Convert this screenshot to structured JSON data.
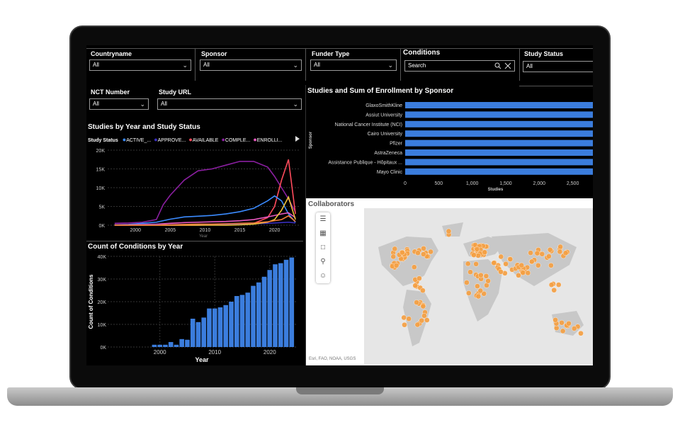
{
  "filters": {
    "countryname": {
      "label": "Countryname",
      "value": "All"
    },
    "sponsor": {
      "label": "Sponsor",
      "value": "All"
    },
    "funder_type": {
      "label": "Funder Type",
      "value": "All"
    },
    "conditions": {
      "label": "Conditions",
      "placeholder": "Search"
    },
    "study_status": {
      "label": "Study Status",
      "value": "All"
    },
    "nct_number": {
      "label": "NCT Number",
      "value": "All"
    },
    "study_url": {
      "label": "Study URL",
      "value": "All"
    }
  },
  "icons": {
    "chevron": "chevron-down-icon",
    "search": "search-icon",
    "clear": "close-icon",
    "play": "play-icon"
  },
  "line_chart": {
    "title": "Studies by Year and Study Status",
    "legend_title": "Study Status",
    "legend": [
      {
        "name": "ACTIVE_...",
        "color": "#3b8bff"
      },
      {
        "name": "APPROVE...",
        "color": "#3a2fc0"
      },
      {
        "name": "AVAILABLE",
        "color": "#ff4b5c"
      },
      {
        "name": "COMPLE...",
        "color": "#8a1fa0"
      },
      {
        "name": "ENROLLI...",
        "color": "#e858c0"
      }
    ],
    "xlabel": "Year"
  },
  "bar_chart": {
    "title": "Studies and Sum of Enrollment by Sponsor",
    "ylabel": "Sponsor",
    "xlabel": "Studies"
  },
  "column_chart": {
    "title": "Count of Conditions by Year",
    "ylabel": "Count of Conditions",
    "xlabel": "Year"
  },
  "map": {
    "title": "Collaborators",
    "attribution": "Esri, FAO, NOAA, USGS",
    "dot_color": "#f5a044"
  },
  "chart_data": [
    {
      "type": "line",
      "title": "Studies by Year and Study Status",
      "xlabel": "Year",
      "x": [
        1997,
        1999,
        2001,
        2003,
        2004,
        2005,
        2007,
        2009,
        2011,
        2013,
        2015,
        2017,
        2019,
        2020,
        2021,
        2022,
        2023
      ],
      "x_ticks": [
        2000,
        2005,
        2010,
        2015,
        2020
      ],
      "y_ticks": [
        "0K",
        "5K",
        "10K",
        "15K",
        "20K"
      ],
      "ylim": [
        0,
        20000
      ],
      "series": [
        {
          "name": "COMPLE...",
          "color": "#8a1fa0",
          "values": [
            500,
            600,
            800,
            1500,
            5500,
            8000,
            12000,
            14500,
            15000,
            16000,
            17000,
            17000,
            15500,
            13000,
            10000,
            7000,
            3500
          ]
        },
        {
          "name": "AVAILABLE",
          "color": "#ff4b5c",
          "values": [
            0,
            0,
            0,
            0,
            0,
            0,
            0,
            0,
            100,
            200,
            300,
            500,
            2000,
            5000,
            12000,
            17500,
            3000
          ]
        },
        {
          "name": "ACTIVE_...",
          "color": "#3b8bff",
          "values": [
            100,
            200,
            500,
            800,
            1200,
            1600,
            2200,
            2400,
            2600,
            3000,
            3600,
            4500,
            6500,
            7800,
            6500,
            3000,
            800
          ]
        },
        {
          "name": "ENROLLI...",
          "color": "#e858c0",
          "values": [
            100,
            100,
            200,
            300,
            400,
            500,
            700,
            800,
            900,
            1000,
            1200,
            1500,
            2200,
            2600,
            3000,
            3300,
            2000
          ]
        },
        {
          "name": "APPROVE...",
          "color": "#3a2fc0",
          "values": [
            0,
            0,
            50,
            100,
            100,
            150,
            200,
            200,
            250,
            300,
            350,
            400,
            500,
            600,
            700,
            800,
            600
          ]
        },
        {
          "name": "",
          "color": "#f0c43c",
          "values": [
            0,
            0,
            0,
            0,
            0,
            0,
            0,
            0,
            0,
            0,
            100,
            300,
            800,
            1500,
            4000,
            7500,
            1500
          ]
        },
        {
          "name": "",
          "color": "#f07a3a",
          "values": [
            0,
            0,
            0,
            0,
            100,
            100,
            200,
            300,
            300,
            400,
            500,
            600,
            900,
            1200,
            1500,
            2500,
            1000
          ]
        }
      ]
    },
    {
      "type": "bar",
      "title": "Studies and Sum of Enrollment by Sponsor",
      "ylabel": "Sponsor",
      "xlabel": "Studies",
      "categories": [
        "GlaxoSmithKline",
        "Assiut University",
        "National Cancer Institute (NCI)",
        "Cairo University",
        "Pfizer",
        "AstraZeneca",
        "Assistance Publique - Hôpitaux ...",
        "Mayo Clinic"
      ],
      "values": [
        2800,
        2800,
        2800,
        2800,
        2800,
        2800,
        2800,
        2800
      ],
      "x_ticks": [
        "0",
        "500",
        "1,000",
        "1,500",
        "2,000",
        "2,500"
      ],
      "xlim": [
        0,
        2800
      ],
      "color": "#3b7ddd"
    },
    {
      "type": "bar",
      "title": "Count of Conditions by Year",
      "xlabel": "Year",
      "ylabel": "Count of Conditions",
      "x": [
        1999,
        2000,
        2001,
        2002,
        2003,
        2004,
        2005,
        2006,
        2007,
        2008,
        2009,
        2010,
        2011,
        2012,
        2013,
        2014,
        2015,
        2016,
        2017,
        2018,
        2019,
        2020,
        2021,
        2022,
        2023,
        2024
      ],
      "values": [
        1000,
        1000,
        1000,
        2200,
        1000,
        3500,
        3200,
        12500,
        11000,
        13000,
        17000,
        17000,
        17500,
        18500,
        20000,
        22500,
        23000,
        24000,
        27000,
        28500,
        31000,
        34000,
        36500,
        37000,
        38500,
        39500
      ],
      "x_ticks": [
        2000,
        2010,
        2020
      ],
      "y_ticks": [
        "0K",
        "10K",
        "20K",
        "30K",
        "40K"
      ],
      "ylim": [
        0,
        40000
      ],
      "color": "#3b7ddd"
    }
  ]
}
